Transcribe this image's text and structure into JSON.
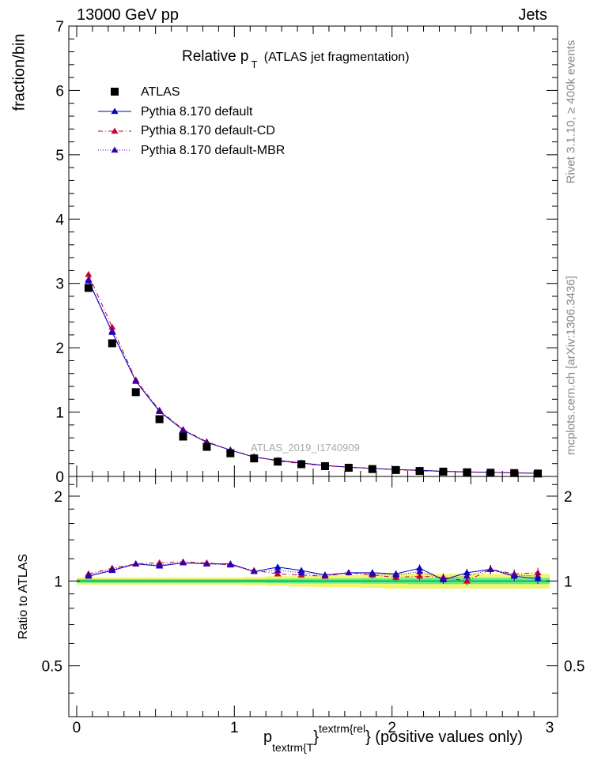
{
  "header": {
    "energy_label": "13000 GeV pp",
    "process_label": "Jets"
  },
  "side_labels": {
    "rivet": "Rivet 3.1.10, ≥ 400k events",
    "mcplots": "mcplots.cern.ch [arXiv:1306.3436]"
  },
  "chart_data": {
    "type": "scatter",
    "title": "Relative p",
    "title_sub": "T",
    "title_suffix": "(ATLAS jet fragmentation)",
    "analysis_label": "ATLAS_2019_I1740909",
    "ylabel": "fraction/bin",
    "ratio_ylabel": "Ratio to ATLAS",
    "xlabel": {
      "p": "p",
      "sub": "textrm{T",
      "brace": "}",
      "sup": "textrm{rel",
      "suffix": "} (positive values only)"
    },
    "xlim": [
      -0.05,
      3.05
    ],
    "ylim": [
      0,
      7
    ],
    "ratio_ylim": [
      0.33,
      2.35
    ],
    "x_ticks": [
      "0",
      "1",
      "2",
      "3"
    ],
    "y_ticks": [
      "0",
      "1",
      "2",
      "3",
      "4",
      "5",
      "6",
      "7"
    ],
    "ratio_y_ticks": [
      "0.5",
      "1",
      "2"
    ],
    "colors": {
      "data": "#000000",
      "default": "#0000cc",
      "cd": "#cc0033",
      "mbr": "#3300aa",
      "band_inner": "#5eec8c",
      "band_outer": "#f2f56e"
    },
    "x": [
      0.075,
      0.225,
      0.375,
      0.525,
      0.675,
      0.825,
      0.975,
      1.125,
      1.275,
      1.425,
      1.575,
      1.725,
      1.875,
      2.025,
      2.175,
      2.325,
      2.475,
      2.625,
      2.775,
      2.925
    ],
    "legend": [
      {
        "label": "ATLAS",
        "marker": "square"
      },
      {
        "label": "Pythia 8.170 default",
        "marker": "triangle",
        "line": "solid"
      },
      {
        "label": "Pythia 8.170 default-CD",
        "marker": "triangle",
        "line": "dashdot"
      },
      {
        "label": "Pythia 8.170 default-MBR",
        "marker": "triangle",
        "line": "dotted"
      }
    ],
    "series": [
      {
        "name": "ATLAS",
        "values": [
          2.93,
          2.07,
          1.31,
          0.89,
          0.62,
          0.46,
          0.36,
          0.28,
          0.23,
          0.19,
          0.16,
          0.135,
          0.115,
          0.1,
          0.085,
          0.075,
          0.065,
          0.058,
          0.052,
          0.045
        ],
        "ratio": [
          1,
          1,
          1,
          1,
          1,
          1,
          1,
          1,
          1,
          1,
          1,
          1,
          1,
          1,
          1,
          1,
          1,
          1,
          1,
          1
        ],
        "band_inner": [
          0.015,
          0.015,
          0.015,
          0.015,
          0.015,
          0.015,
          0.015,
          0.015,
          0.018,
          0.02,
          0.02,
          0.02,
          0.022,
          0.022,
          0.025,
          0.025,
          0.025,
          0.025,
          0.025,
          0.025
        ],
        "band_outer": [
          0.03,
          0.03,
          0.03,
          0.03,
          0.03,
          0.03,
          0.03,
          0.035,
          0.04,
          0.045,
          0.05,
          0.05,
          0.055,
          0.06,
          0.06,
          0.06,
          0.06,
          0.06,
          0.06,
          0.06
        ]
      },
      {
        "name": "Pythia 8.170 default",
        "values": [
          3.04,
          2.24,
          1.48,
          1.01,
          0.72,
          0.53,
          0.41,
          0.3,
          0.25,
          0.21,
          0.17,
          0.145,
          0.125,
          0.108,
          0.096,
          0.08,
          0.071,
          0.064,
          0.056,
          0.049
        ],
        "ratio": [
          1.04,
          1.09,
          1.15,
          1.13,
          1.16,
          1.15,
          1.15,
          1.08,
          1.12,
          1.09,
          1.05,
          1.07,
          1.07,
          1.06,
          1.11,
          1.01,
          1.07,
          1.1,
          1.04,
          1.02
        ],
        "ratio_err": [
          0.01,
          0.01,
          0.01,
          0.01,
          0.01,
          0.01,
          0.01,
          0.015,
          0.02,
          0.025,
          0.025,
          0.025,
          0.03,
          0.03,
          0.035,
          0.035,
          0.035,
          0.04,
          0.04,
          0.045
        ]
      },
      {
        "name": "Pythia 8.170 default-CD",
        "values": [
          3.14,
          2.32,
          1.5,
          1.03,
          0.73,
          0.54,
          0.41,
          0.31,
          0.24,
          0.2,
          0.165,
          0.145,
          0.125,
          0.105,
          0.088,
          0.078,
          0.066,
          0.064,
          0.055,
          0.049
        ],
        "ratio": [
          1.06,
          1.11,
          1.15,
          1.16,
          1.17,
          1.16,
          1.14,
          1.09,
          1.06,
          1.05,
          1.04,
          1.07,
          1.05,
          1.03,
          1.04,
          1.03,
          1.0,
          1.1,
          1.06,
          1.07
        ],
        "ratio_err": [
          0.01,
          0.01,
          0.01,
          0.01,
          0.01,
          0.01,
          0.01,
          0.015,
          0.02,
          0.025,
          0.025,
          0.025,
          0.03,
          0.03,
          0.035,
          0.035,
          0.035,
          0.04,
          0.04,
          0.045
        ]
      },
      {
        "name": "Pythia 8.170 default-MBR",
        "values": [
          3.06,
          2.26,
          1.48,
          1.02,
          0.72,
          0.53,
          0.41,
          0.3,
          0.245,
          0.205,
          0.168,
          0.145,
          0.124,
          0.106,
          0.092,
          0.079,
          0.068,
          0.063,
          0.055,
          0.048
        ],
        "ratio": [
          1.05,
          1.1,
          1.15,
          1.14,
          1.16,
          1.15,
          1.14,
          1.08,
          1.09,
          1.07,
          1.05,
          1.07,
          1.06,
          1.05,
          1.08,
          1.02,
          1.04,
          1.1,
          1.05,
          1.04
        ],
        "ratio_err": [
          0.01,
          0.01,
          0.01,
          0.01,
          0.01,
          0.01,
          0.01,
          0.015,
          0.02,
          0.025,
          0.025,
          0.025,
          0.03,
          0.03,
          0.035,
          0.035,
          0.035,
          0.04,
          0.04,
          0.045
        ]
      }
    ]
  }
}
